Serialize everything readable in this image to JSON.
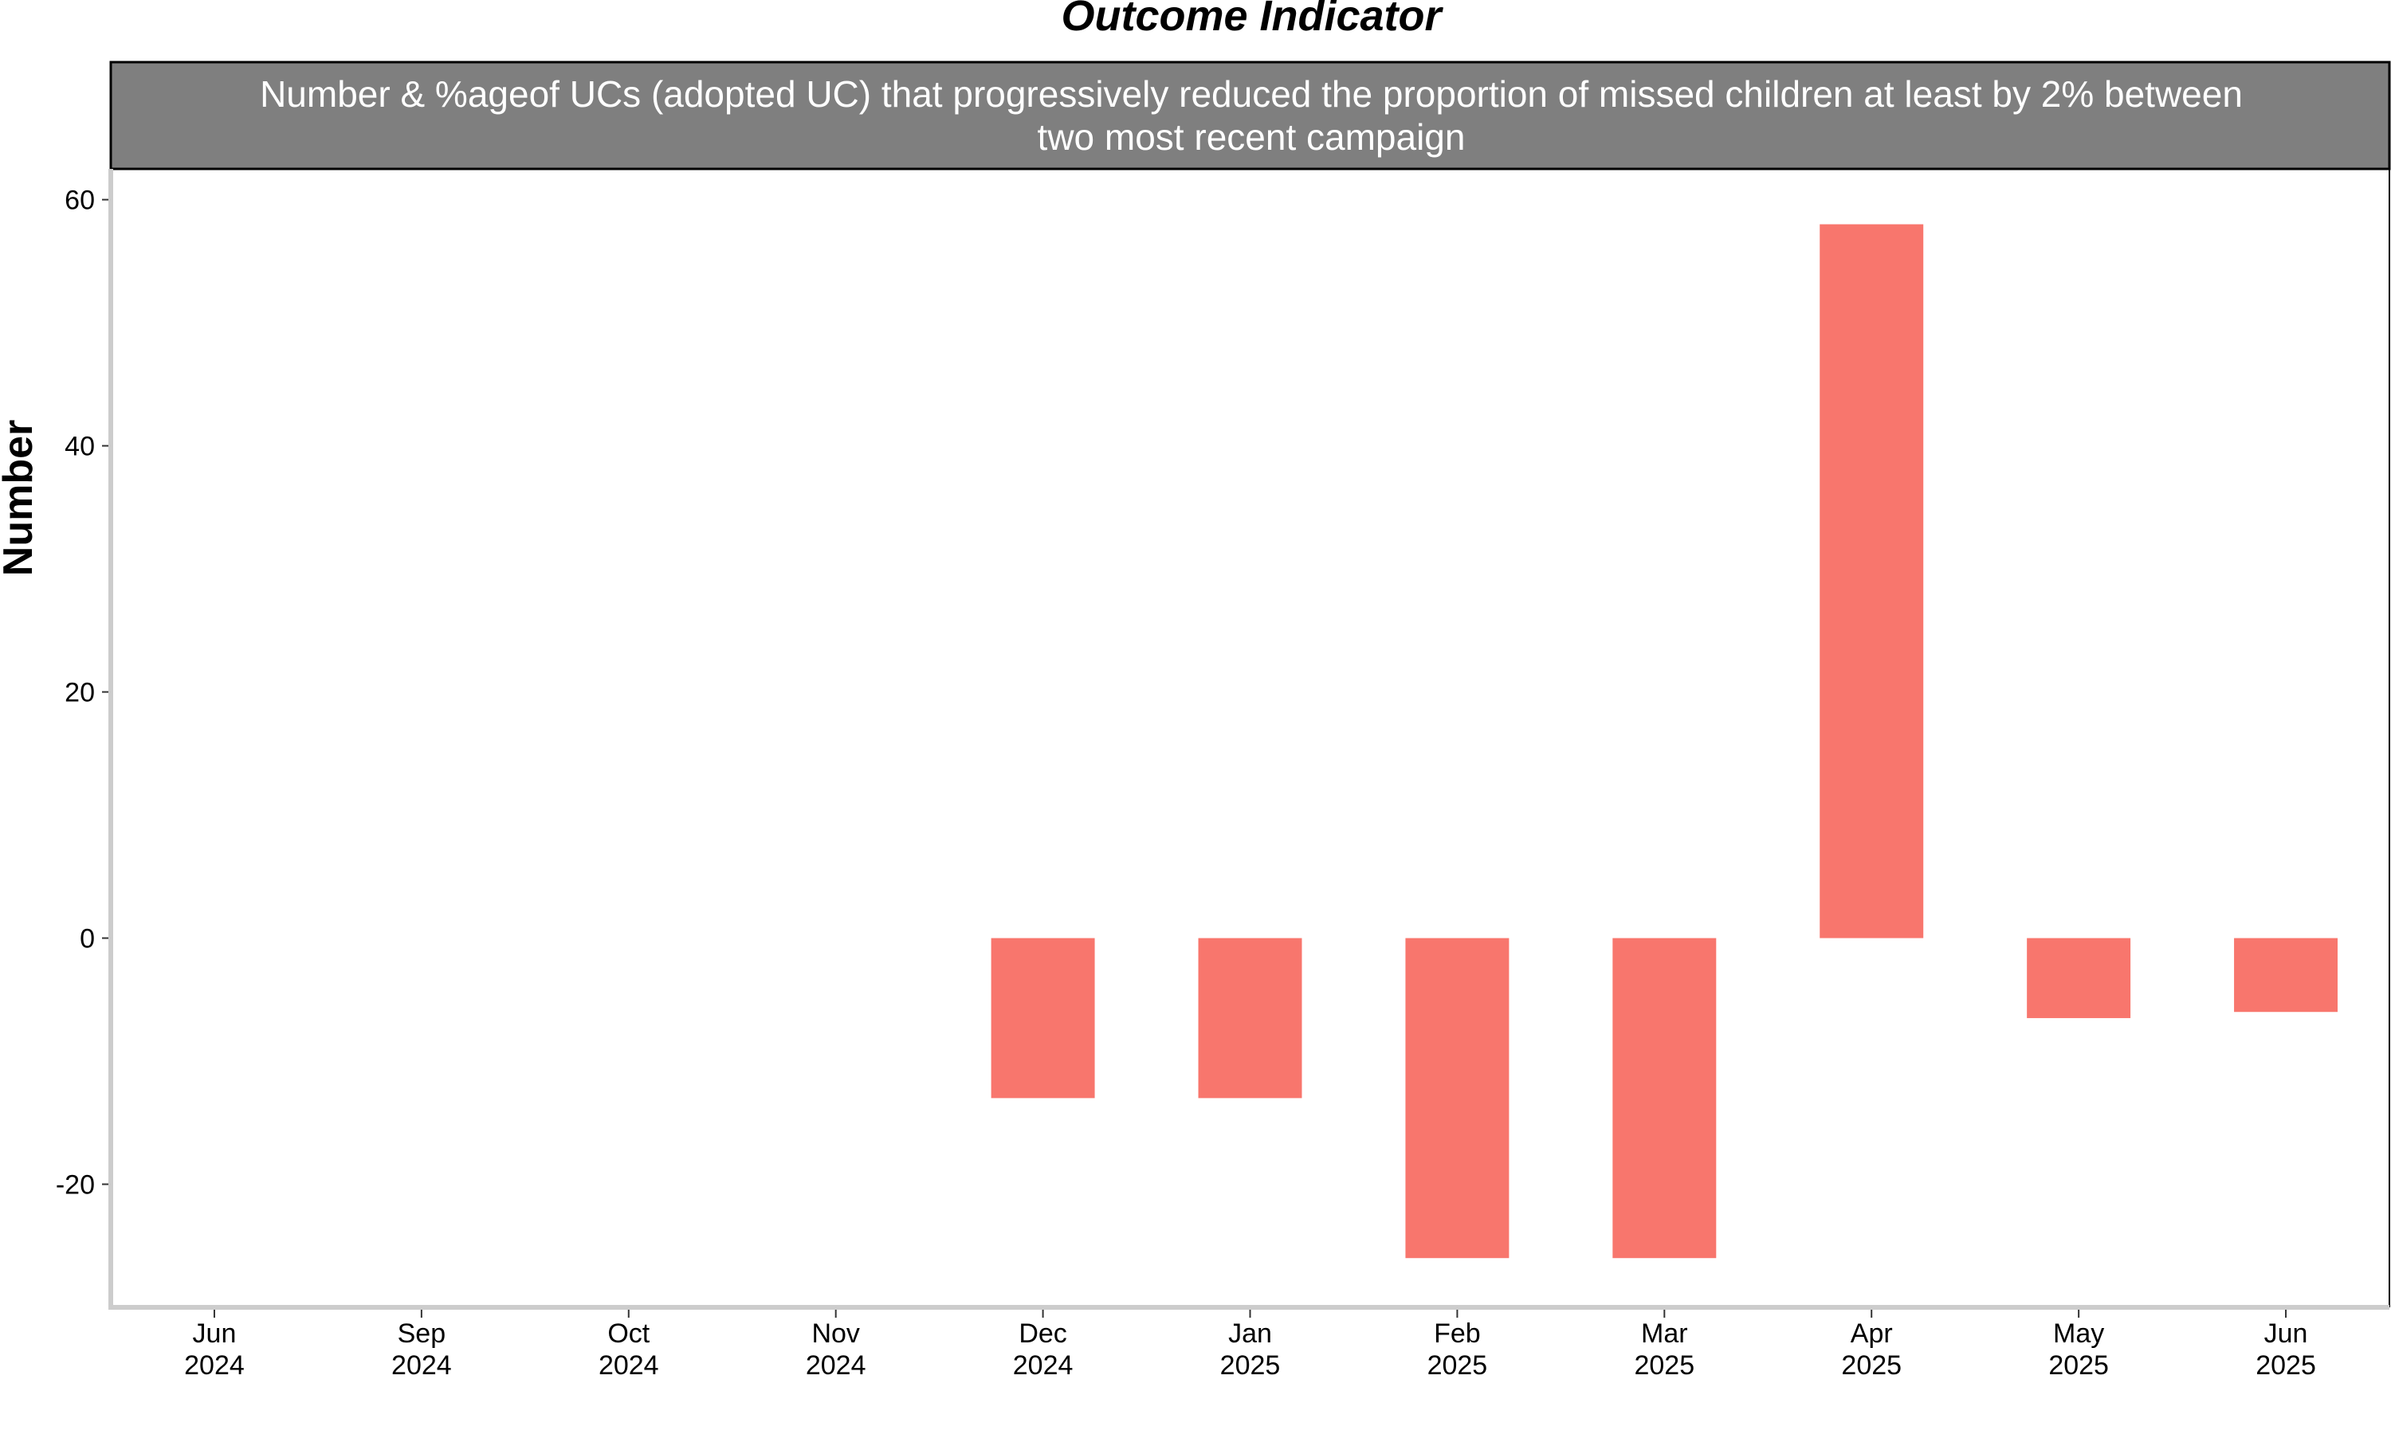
{
  "chart_data": {
    "type": "bar",
    "title": "Outcome Indicator",
    "strip_label": "Number & %ageof UCs (adopted UC) that progressively reduced the proportion of missed children at least by 2% between two most recent campaign",
    "strip_lines": [
      "Number & %ageof UCs (adopted UC) that progressively reduced the proportion of missed children at least by 2% between",
      "two most recent campaign"
    ],
    "ylabel": "Number",
    "xlabel": "",
    "categories": [
      [
        "Jun",
        "2024"
      ],
      [
        "Sep",
        "2024"
      ],
      [
        "Oct",
        "2024"
      ],
      [
        "Nov",
        "2024"
      ],
      [
        "Dec",
        "2024"
      ],
      [
        "Jan",
        "2025"
      ],
      [
        "Feb",
        "2025"
      ],
      [
        "Mar",
        "2025"
      ],
      [
        "Apr",
        "2025"
      ],
      [
        "May",
        "2025"
      ],
      [
        "Jun",
        "2025"
      ]
    ],
    "values": [
      null,
      null,
      null,
      null,
      -13,
      -13,
      -26,
      -26,
      58,
      -6.5,
      -6
    ],
    "yticks": [
      60,
      40,
      20,
      0,
      -20
    ],
    "ylim": [
      -30,
      62.5
    ],
    "bar_color": "#F8766D",
    "strip_fill": "#7F7F7F",
    "axis_color": "#CCCCCC",
    "grid": false,
    "legend": "none"
  }
}
